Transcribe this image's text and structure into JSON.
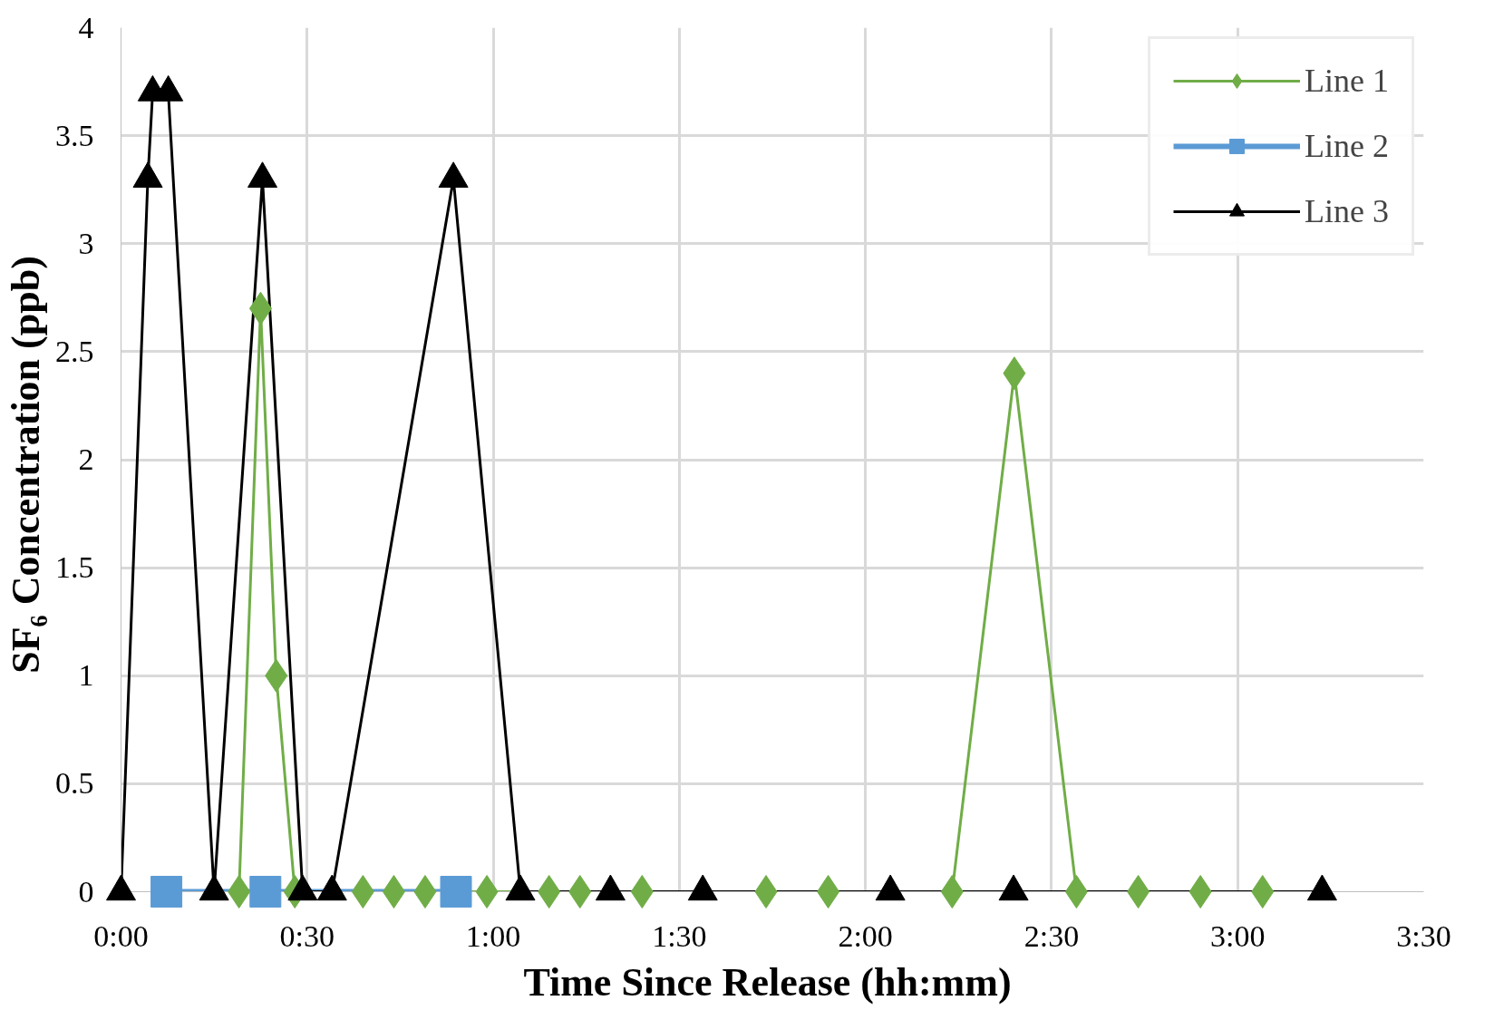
{
  "chart_data": {
    "type": "line",
    "xlabel": "Time  Since Release (hh:mm)",
    "ylabel": "SF₆ Concentration  (ppb)",
    "xlim": [
      0,
      3.5
    ],
    "xticks": [
      {
        "value": 0,
        "label": "0:00"
      },
      {
        "value": 0.5,
        "label": "0:30"
      },
      {
        "value": 1,
        "label": "1:00"
      },
      {
        "value": 1.5,
        "label": "1:30"
      },
      {
        "value": 2,
        "label": "2:00"
      },
      {
        "value": 2.5,
        "label": "2:30"
      },
      {
        "value": 3,
        "label": "3:00"
      },
      {
        "value": 3.5,
        "label": "3:30"
      }
    ],
    "ylim": [
      0,
      4
    ],
    "yticks": [
      0,
      0.5,
      1,
      1.5,
      2,
      2.5,
      3,
      3.5,
      4
    ],
    "grid": true,
    "legend": "top right",
    "line_style": "solid",
    "series": [
      {
        "name": "Line 1",
        "color": "#70ad47",
        "marker": "diamond",
        "x": [
          0.317,
          0.375,
          0.417,
          0.467,
          0.65,
          0.733,
          0.817,
          0.983,
          1.15,
          1.233,
          1.4,
          1.733,
          1.9,
          2.233,
          2.4,
          2.567,
          2.733,
          2.9,
          3.067
        ],
        "values": [
          0,
          2.7,
          1.0,
          0,
          0,
          0,
          0,
          0,
          0,
          0,
          0,
          0,
          0,
          0,
          2.4,
          0,
          0,
          0,
          0
        ]
      },
      {
        "name": "Line 2",
        "color": "#5b9bd5",
        "marker": "square",
        "x": [
          0.122,
          0.388,
          0.9
        ],
        "values": [
          0,
          0,
          0
        ]
      },
      {
        "name": "Line 3",
        "color": "#000000",
        "marker": "triangle",
        "x": [
          0,
          0.072,
          0.085,
          0.127,
          0.25,
          0.38,
          0.488,
          0.567,
          0.893,
          1.073,
          1.315,
          1.563,
          2.067,
          2.398,
          3.227
        ],
        "values": [
          0,
          3.3,
          3.7,
          3.7,
          0,
          3.3,
          0,
          0,
          3.3,
          0,
          0,
          0,
          0,
          0,
          0
        ]
      }
    ]
  }
}
